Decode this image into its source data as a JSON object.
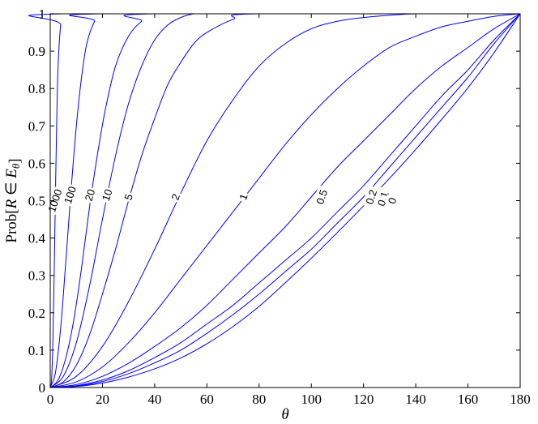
{
  "chart_data": {
    "type": "line",
    "title": "",
    "xlabel": "θ",
    "ylabel": "Prob[R ∈ E_θ]",
    "xlim": [
      0,
      180
    ],
    "ylim": [
      0,
      1
    ],
    "x_ticks": [
      0,
      20,
      40,
      60,
      80,
      100,
      120,
      140,
      160,
      180
    ],
    "y_ticks": [
      0,
      0.1,
      0.2,
      0.3,
      0.4,
      0.5,
      0.6,
      0.7,
      0.8,
      0.9,
      1
    ],
    "grid": false,
    "line_color": "#0000ff",
    "series": [
      {
        "name": "1000",
        "x": [
          0,
          0.5,
          1,
          1.5,
          2,
          2.5,
          3,
          4,
          5,
          180
        ],
        "y": [
          0,
          0.02,
          0.12,
          0.3,
          0.52,
          0.72,
          0.86,
          0.97,
          1.0,
          1.0
        ]
      },
      {
        "name": "100",
        "x": [
          0,
          2,
          4,
          6,
          8,
          10,
          12,
          14,
          17,
          20,
          180
        ],
        "y": [
          0,
          0.04,
          0.16,
          0.34,
          0.53,
          0.7,
          0.83,
          0.92,
          0.98,
          1.0,
          1.0
        ]
      },
      {
        "name": "20",
        "x": [
          0,
          3,
          6,
          9,
          12,
          15,
          18,
          21,
          25,
          30,
          35,
          40,
          180
        ],
        "y": [
          0,
          0.02,
          0.08,
          0.18,
          0.32,
          0.48,
          0.62,
          0.74,
          0.86,
          0.94,
          0.98,
          1.0,
          1.0
        ]
      },
      {
        "name": "10",
        "x": [
          0,
          5,
          10,
          15,
          20,
          25,
          30,
          35,
          40,
          45,
          50,
          55,
          60,
          180
        ],
        "y": [
          0,
          0.03,
          0.12,
          0.27,
          0.45,
          0.62,
          0.76,
          0.86,
          0.93,
          0.97,
          0.99,
          1.0,
          1.0,
          1.0
        ]
      },
      {
        "name": "5",
        "x": [
          0,
          5,
          10,
          15,
          20,
          25,
          30,
          35,
          40,
          45,
          50,
          55,
          60,
          70,
          80,
          180
        ],
        "y": [
          0,
          0.015,
          0.06,
          0.14,
          0.25,
          0.37,
          0.5,
          0.62,
          0.72,
          0.81,
          0.87,
          0.92,
          0.95,
          0.985,
          1.0,
          1.0
        ]
      },
      {
        "name": "2",
        "x": [
          0,
          10,
          20,
          30,
          40,
          50,
          60,
          70,
          80,
          90,
          100,
          110,
          120,
          140,
          160,
          180
        ],
        "y": [
          0,
          0.03,
          0.11,
          0.23,
          0.37,
          0.52,
          0.66,
          0.77,
          0.86,
          0.92,
          0.96,
          0.98,
          0.99,
          1.0,
          1.0,
          1.0
        ]
      },
      {
        "name": "1",
        "x": [
          0,
          10,
          20,
          30,
          40,
          50,
          60,
          70,
          80,
          90,
          100,
          110,
          120,
          130,
          140,
          150,
          160,
          170,
          180
        ],
        "y": [
          0,
          0.015,
          0.055,
          0.12,
          0.2,
          0.29,
          0.38,
          0.47,
          0.56,
          0.65,
          0.73,
          0.8,
          0.86,
          0.91,
          0.94,
          0.965,
          0.98,
          0.993,
          1.0
        ]
      },
      {
        "name": "0.5",
        "x": [
          0,
          10,
          20,
          30,
          40,
          50,
          60,
          70,
          80,
          90,
          100,
          110,
          120,
          130,
          140,
          150,
          160,
          170,
          180
        ],
        "y": [
          0,
          0.008,
          0.03,
          0.065,
          0.11,
          0.16,
          0.22,
          0.29,
          0.36,
          0.43,
          0.51,
          0.59,
          0.66,
          0.73,
          0.8,
          0.86,
          0.91,
          0.96,
          1.0
        ]
      },
      {
        "name": "0.2",
        "x": [
          0,
          10,
          20,
          30,
          40,
          50,
          60,
          70,
          80,
          90,
          100,
          110,
          120,
          130,
          140,
          150,
          160,
          170,
          180
        ],
        "y": [
          0,
          0.005,
          0.02,
          0.045,
          0.08,
          0.12,
          0.17,
          0.22,
          0.28,
          0.34,
          0.4,
          0.47,
          0.54,
          0.62,
          0.7,
          0.78,
          0.85,
          0.93,
          1.0
        ]
      },
      {
        "name": "0.1",
        "x": [
          0,
          10,
          20,
          30,
          40,
          50,
          60,
          70,
          80,
          90,
          100,
          110,
          120,
          130,
          140,
          150,
          160,
          170,
          180
        ],
        "y": [
          0,
          0.004,
          0.016,
          0.037,
          0.066,
          0.1,
          0.145,
          0.195,
          0.25,
          0.31,
          0.37,
          0.44,
          0.51,
          0.59,
          0.67,
          0.75,
          0.83,
          0.92,
          1.0
        ]
      },
      {
        "name": "0",
        "x": [
          0,
          10,
          20,
          30,
          40,
          50,
          60,
          70,
          80,
          90,
          100,
          110,
          120,
          130,
          140,
          150,
          160,
          170,
          180
        ],
        "y": [
          0,
          0.003,
          0.012,
          0.028,
          0.05,
          0.079,
          0.117,
          0.163,
          0.217,
          0.28,
          0.346,
          0.415,
          0.486,
          0.56,
          0.637,
          0.718,
          0.802,
          0.896,
          1.0
        ]
      }
    ],
    "curve_labels": [
      {
        "text": "1000",
        "x": 1.8,
        "y": 0.5
      },
      {
        "text": "100",
        "x": 7.6,
        "y": 0.515
      },
      {
        "text": "20",
        "x": 15.2,
        "y": 0.515
      },
      {
        "text": "10",
        "x": 21.8,
        "y": 0.515
      },
      {
        "text": "5",
        "x": 30.0,
        "y": 0.51
      },
      {
        "text": "2",
        "x": 48.0,
        "y": 0.51
      },
      {
        "text": "1",
        "x": 74.0,
        "y": 0.51
      },
      {
        "text": "0.5",
        "x": 104.0,
        "y": 0.51
      },
      {
        "text": "0.2",
        "x": 123.0,
        "y": 0.51
      },
      {
        "text": "0.1",
        "x": 127.5,
        "y": 0.505
      },
      {
        "text": "0",
        "x": 131.0,
        "y": 0.5
      }
    ]
  }
}
